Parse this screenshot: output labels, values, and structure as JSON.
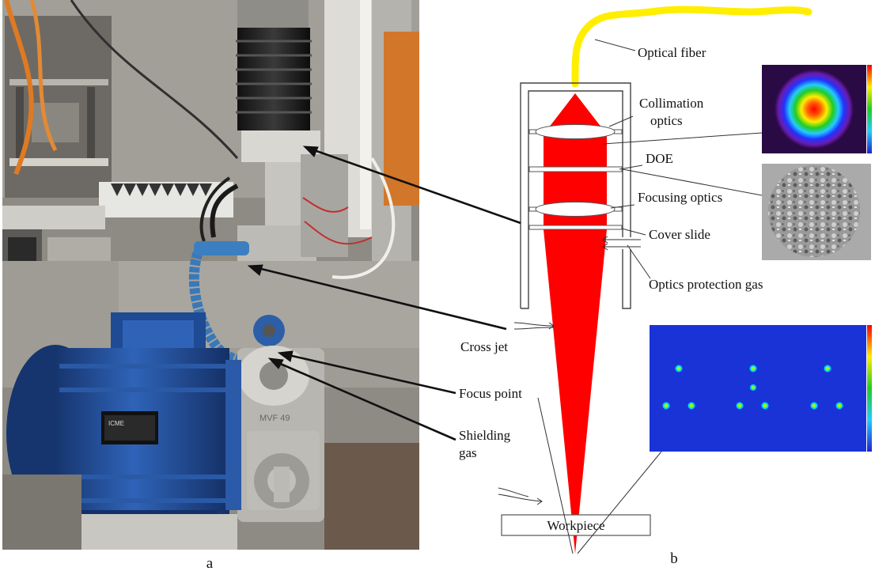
{
  "panels": {
    "photo_letter": "a",
    "schematic_letter": "b"
  },
  "labels": {
    "optical_fiber": "Optical fiber",
    "collimation_1": "Collimation",
    "collimation_2": "optics",
    "doe": "DOE",
    "focusing_optics": "Focusing optics",
    "cover_slide": "Cover slide",
    "optics_protection_gas": "Optics protection gas",
    "cross_jet": "Cross jet",
    "focus_point": "Focus point",
    "shielding_1": "Shielding",
    "shielding_2": "gas",
    "workpiece": "Workpiece"
  },
  "photo_text": {
    "motor_brand": "ICME",
    "gearbox_marking": "MVF 49"
  },
  "colors": {
    "laser_beam": "#ff0000",
    "fiber": "#ffee00",
    "spot_background": "#1a33d6"
  }
}
